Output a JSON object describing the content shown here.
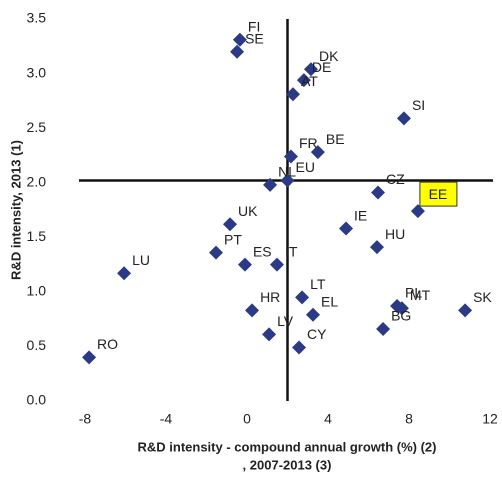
{
  "chart_data": {
    "type": "scatter",
    "xlabel": [
      "R&D intensity - compound annual growth (%) (2)",
      ", 2007-2013 (3)"
    ],
    "ylabel": "R&D intensity, 2013 (1)",
    "color": "#2b3a85",
    "highlight_color": "#ffff00",
    "xlim": [
      -8,
      12
    ],
    "xticks": [
      -8,
      -4,
      0,
      4,
      8,
      12
    ],
    "ylim": [
      0,
      3.5
    ],
    "yticks": [
      {
        "value": 0,
        "label": "0.0"
      },
      0.5,
      {
        "value": 1,
        "label": "1.0"
      },
      1.5,
      {
        "value": 2,
        "label": "2.0"
      },
      2.5,
      {
        "value": 3,
        "label": "3.0"
      },
      3.5
    ],
    "points": [
      {
        "label": "FI",
        "x": -0.35,
        "y": 3.31
      },
      {
        "label": "SE",
        "x": -0.49,
        "y": 3.2
      },
      {
        "label": "DK",
        "x": 3.16,
        "y": 3.04
      },
      {
        "label": "DE",
        "x": 2.81,
        "y": 2.94
      },
      {
        "label": "AT",
        "x": 2.27,
        "y": 2.81
      },
      {
        "label": "SI",
        "x": 7.75,
        "y": 2.59
      },
      {
        "label": "FR",
        "x": 2.17,
        "y": 2.24
      },
      {
        "label": "BE",
        "x": 3.5,
        "y": 2.28
      },
      {
        "label": "EU",
        "x": 2.0,
        "y": 2.02
      },
      {
        "label": "NL",
        "x": 1.14,
        "y": 1.98
      },
      {
        "label": "CZ",
        "x": 6.47,
        "y": 1.91
      },
      {
        "label": "EE",
        "x": 8.44,
        "y": 1.74,
        "highlight": true
      },
      {
        "label": "IE",
        "x": 4.89,
        "y": 1.58
      },
      {
        "label": "HU",
        "x": 6.42,
        "y": 1.41
      },
      {
        "label": "UK",
        "x": -0.84,
        "y": 1.62
      },
      {
        "label": "PT",
        "x": -1.53,
        "y": 1.36
      },
      {
        "label": "ES",
        "x": -0.1,
        "y": 1.25
      },
      {
        "label": "IT",
        "x": 1.48,
        "y": 1.25
      },
      {
        "label": "LU",
        "x": -6.07,
        "y": 1.17
      },
      {
        "label": "LT",
        "x": 2.72,
        "y": 0.95
      },
      {
        "label": "HR",
        "x": 0.25,
        "y": 0.83
      },
      {
        "label": "EL",
        "x": 3.26,
        "y": 0.79
      },
      {
        "label": "PL",
        "x": 7.41,
        "y": 0.87
      },
      {
        "label": "MT",
        "x": 7.65,
        "y": 0.85
      },
      {
        "label": "SK",
        "x": 10.77,
        "y": 0.83
      },
      {
        "label": "BG",
        "x": 6.72,
        "y": 0.66
      },
      {
        "label": "LV",
        "x": 1.09,
        "y": 0.61
      },
      {
        "label": "CY",
        "x": 2.57,
        "y": 0.49
      },
      {
        "label": "RO",
        "x": -7.8,
        "y": 0.4
      }
    ]
  }
}
